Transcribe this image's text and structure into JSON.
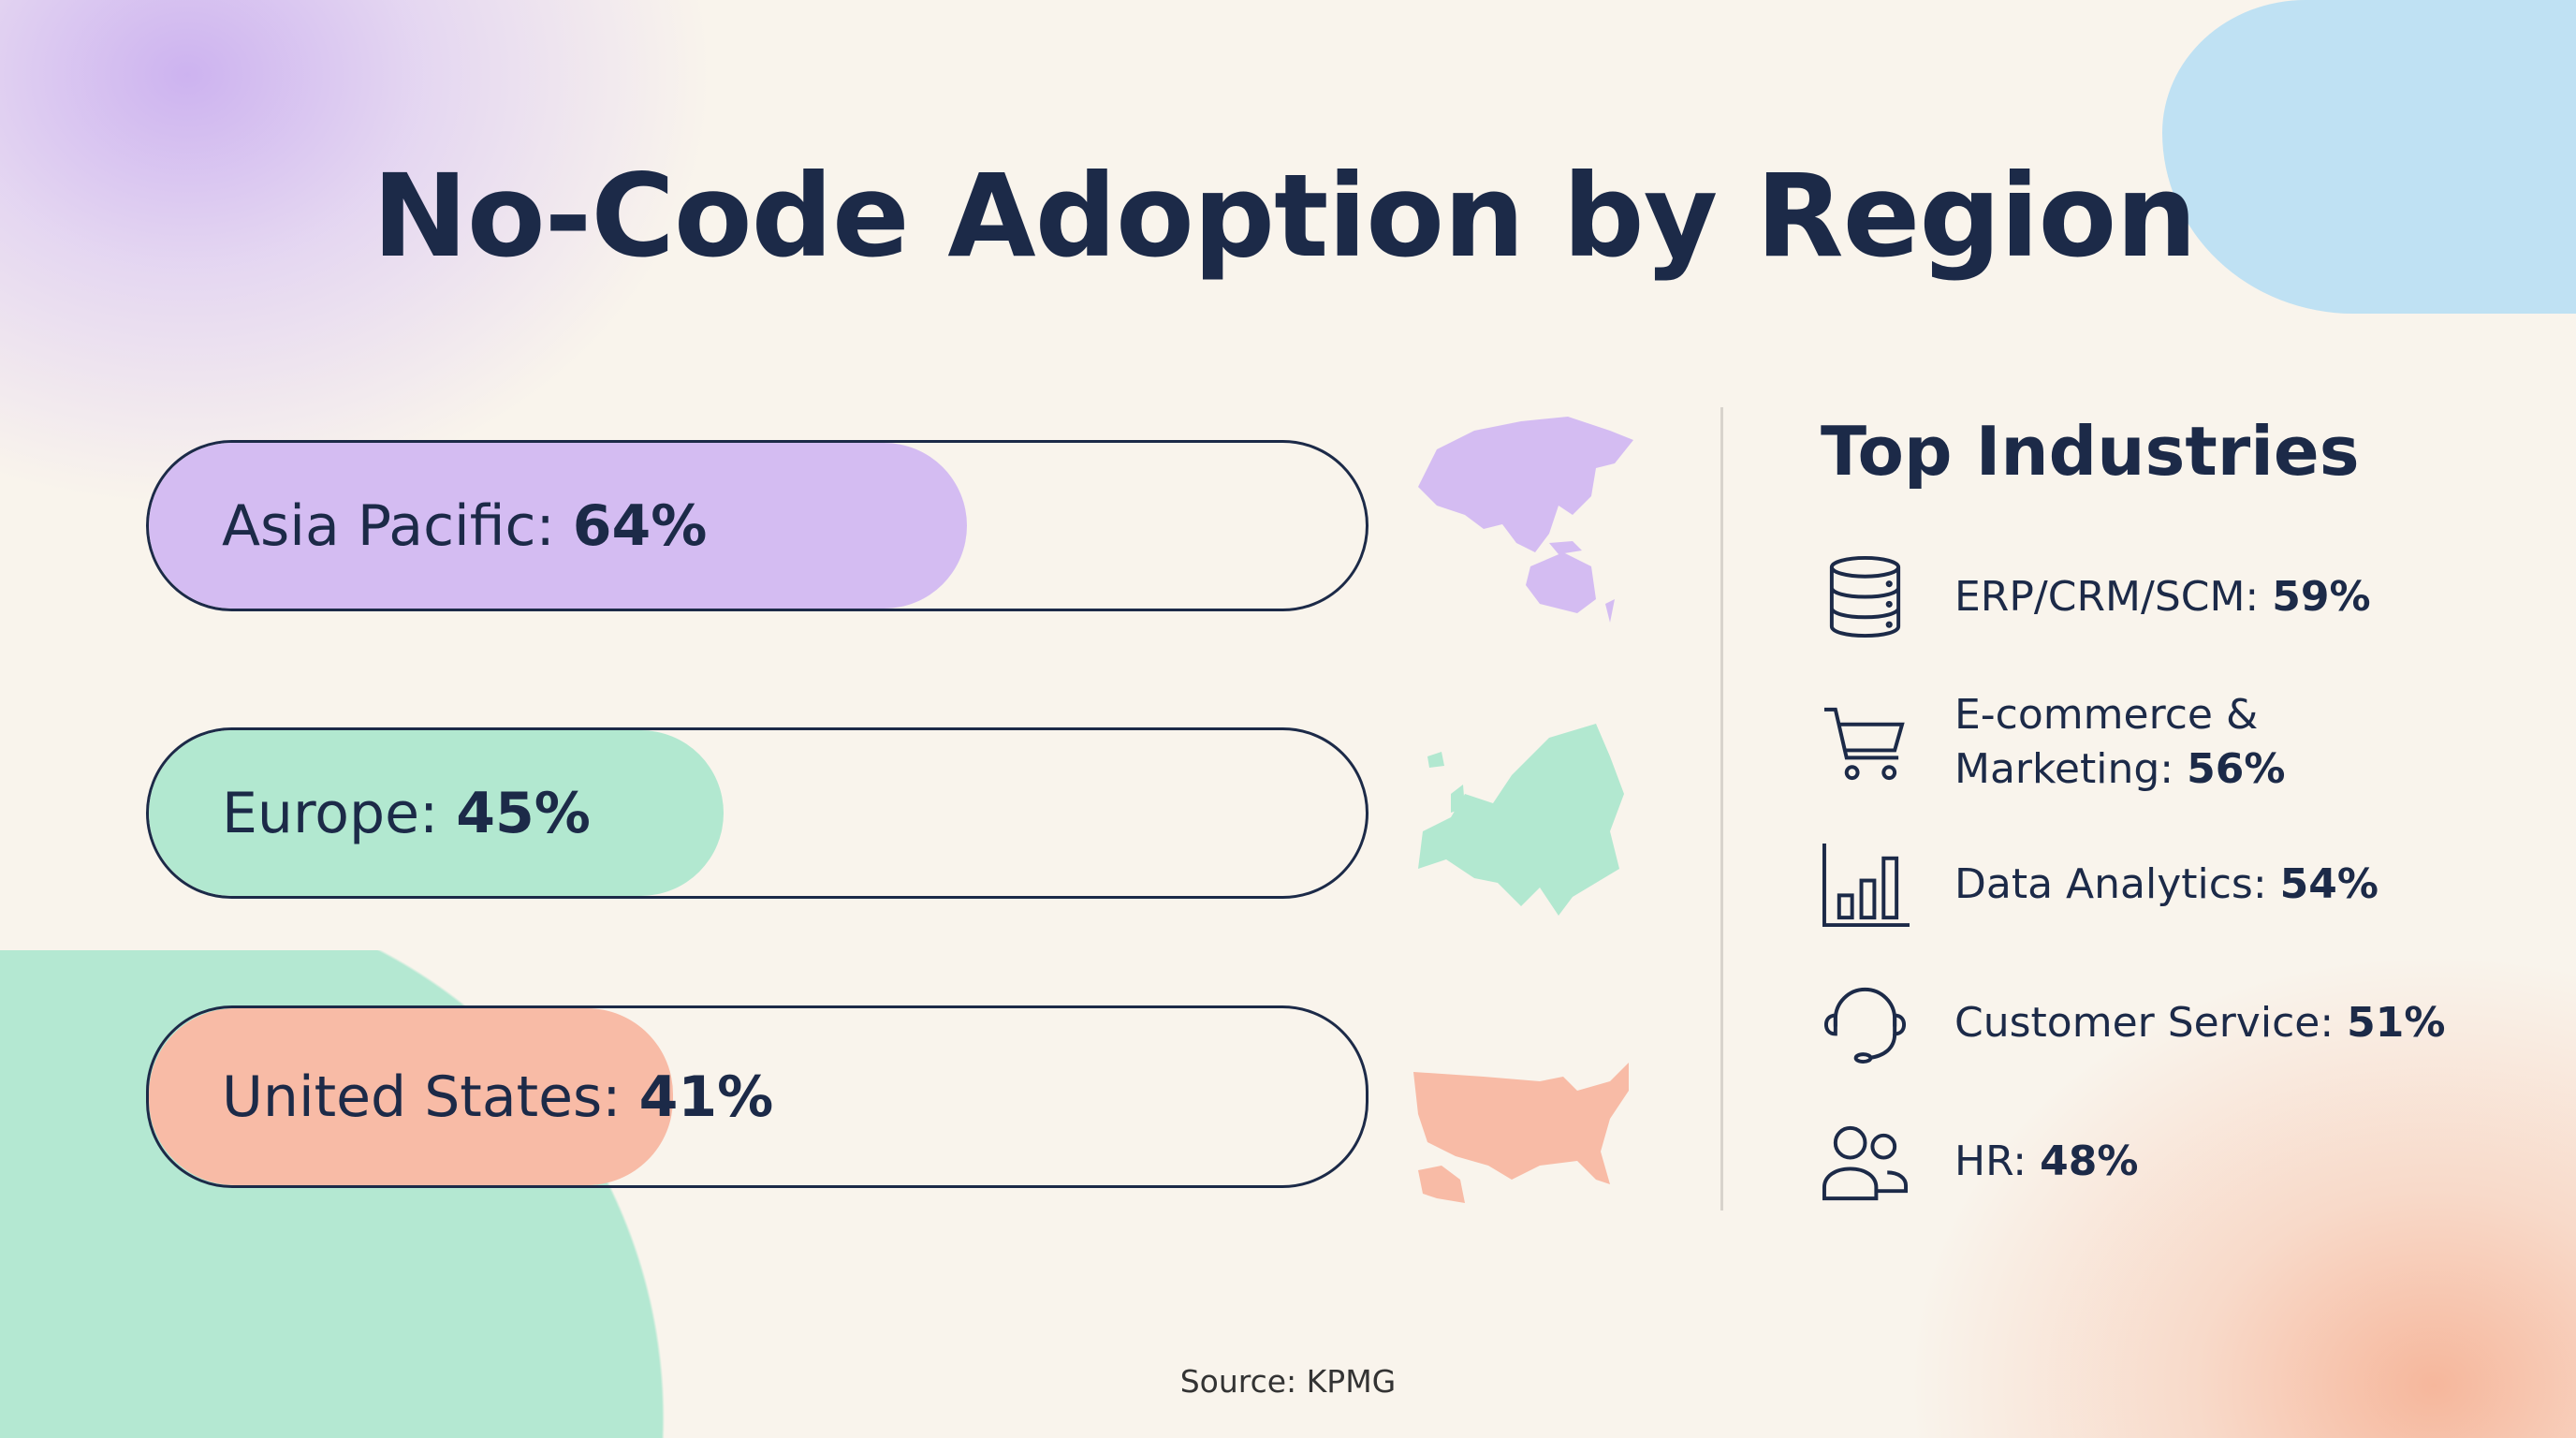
{
  "title": "No-Code Adoption by Region",
  "chart_data": {
    "type": "bar",
    "title": "No-Code Adoption by Region",
    "categories": [
      "Asia Pacific",
      "Europe",
      "United States"
    ],
    "values": [
      64,
      45,
      41
    ],
    "unit": "%",
    "xlim": [
      0,
      100
    ],
    "colors": [
      "#d4bcf2",
      "#b2e8d0",
      "#f8bba6"
    ]
  },
  "regions": [
    {
      "label": "Asia Pacific: ",
      "value": "64%",
      "pct": 64,
      "color": "#d4bcf2",
      "map_icon": "asia-pacific-map"
    },
    {
      "label": "Europe: ",
      "value": "45%",
      "pct": 45,
      "color": "#b2e8d0",
      "map_icon": "europe-map"
    },
    {
      "label": "United States: ",
      "value": "41%",
      "pct": 41,
      "color": "#f8bba6",
      "map_icon": "usa-map"
    }
  ],
  "industries": {
    "title": "Top Industries",
    "items": [
      {
        "label": "ERP/CRM/SCM: ",
        "value": "59%",
        "icon": "database-icon"
      },
      {
        "label": "E-commerce & Marketing: ",
        "value": "56%",
        "icon": "shopping-cart-icon"
      },
      {
        "label": "Data Analytics: ",
        "value": "54%",
        "icon": "bar-chart-icon"
      },
      {
        "label": "Customer Service: ",
        "value": "51%",
        "icon": "headset-icon"
      },
      {
        "label": "HR: ",
        "value": "48%",
        "icon": "users-icon"
      }
    ]
  },
  "source": "Source: KPMG"
}
